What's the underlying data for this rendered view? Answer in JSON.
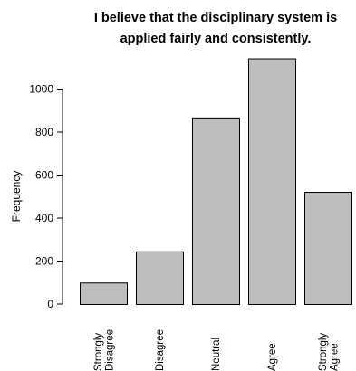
{
  "chart_data": {
    "type": "bar",
    "title_lines": [
      "I believe that the disciplinary system is",
      "applied fairly and consistently."
    ],
    "xlabel": "",
    "ylabel": "Frequency",
    "categories": [
      [
        "Strongly",
        "Disagree"
      ],
      [
        "Disagree"
      ],
      [
        "Neutral"
      ],
      [
        "Agree"
      ],
      [
        "Strongly",
        "Agree"
      ]
    ],
    "values": [
      100,
      245,
      868,
      1143,
      522
    ],
    "yticks": [
      "0",
      "200",
      "400",
      "600",
      "800",
      "1000"
    ],
    "ylim": [
      0,
      1143
    ],
    "grid": false,
    "bar_fill": "#bebebe",
    "bar_stroke": "#000000"
  }
}
